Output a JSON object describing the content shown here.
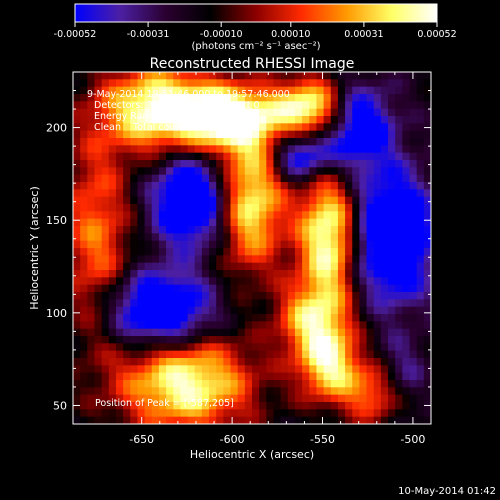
{
  "chart_data": {
    "type": "heatmap",
    "title": "Reconstructed RHESSI Image",
    "xlabel": "Heliocentric X (arcsec)",
    "ylabel": "Heliocentric Y (arcsec)",
    "xlim": [
      -688,
      -490
    ],
    "ylim": [
      40,
      230
    ],
    "x_ticks": [
      "-650",
      "-600",
      "-550",
      "-500"
    ],
    "x_tick_values": [
      -650,
      -600,
      -550,
      -500
    ],
    "y_ticks": [
      "50",
      "100",
      "150",
      "200"
    ],
    "y_tick_values": [
      50,
      100,
      150,
      200
    ],
    "colorbar": {
      "min": -0.00052,
      "max": 0.00052,
      "tick_labels": [
        "-0.00052",
        "-0.00031",
        "-0.00010",
        "0.00010",
        "0.00031",
        "0.00052"
      ],
      "tick_values": [
        -0.00052,
        -0.00031,
        -0.0001,
        0.0001,
        0.00031,
        0.00052
      ],
      "unit_label": "(photons cm⁻² s⁻¹ asec⁻²)",
      "stops": [
        "#0000ff",
        "#4c1fa3",
        "#2a0030",
        "#000000",
        "#8c0000",
        "#ff2a00",
        "#ff9900",
        "#ffff66",
        "#ffffff"
      ]
    },
    "annotations": [
      "9-May-2014 19:51:46.000 to 19:57:46.000",
      "Detectors: 3F 5F 6F 7F 8F 9F, Att 0",
      "Energy Range: 12.0 - 25.0 keV",
      "Clean    Total counts: 1.59E+04",
      "Position of Peak = [-587,205]"
    ],
    "grid": false,
    "sources": [
      {
        "x": -640,
        "y": 210,
        "sx": 22,
        "sy": 16,
        "amp": 1.0
      },
      {
        "x": -600,
        "y": 205,
        "sx": 20,
        "sy": 12,
        "amp": 1.0
      },
      {
        "x": -555,
        "y": 210,
        "sx": 14,
        "sy": 12,
        "amp": 0.95
      },
      {
        "x": -590,
        "y": 160,
        "sx": 14,
        "sy": 26,
        "amp": 0.95
      },
      {
        "x": -545,
        "y": 140,
        "sx": 12,
        "sy": 26,
        "amp": 1.0
      },
      {
        "x": -555,
        "y": 95,
        "sx": 14,
        "sy": 14,
        "amp": 0.65
      },
      {
        "x": -625,
        "y": 60,
        "sx": 26,
        "sy": 18,
        "amp": 0.95
      },
      {
        "x": -545,
        "y": 70,
        "sx": 12,
        "sy": 14,
        "amp": 0.8
      },
      {
        "x": -515,
        "y": 55,
        "sx": 14,
        "sy": 12,
        "amp": 0.7
      },
      {
        "x": -675,
        "y": 140,
        "sx": 14,
        "sy": 40,
        "amp": 0.55
      },
      {
        "x": -640,
        "y": 100,
        "sx": 20,
        "sy": 14,
        "amp": -0.9
      },
      {
        "x": -620,
        "y": 160,
        "sx": 16,
        "sy": 18,
        "amp": -0.9
      },
      {
        "x": -510,
        "y": 140,
        "sx": 16,
        "sy": 24,
        "amp": -0.95
      },
      {
        "x": -560,
        "y": 185,
        "sx": 12,
        "sy": 10,
        "amp": -0.7
      },
      {
        "x": -530,
        "y": 200,
        "sx": 14,
        "sy": 16,
        "amp": -0.75
      },
      {
        "x": -505,
        "y": 60,
        "sx": 10,
        "sy": 14,
        "amp": -0.55
      }
    ]
  },
  "footer": {
    "timestamp": "10-May-2014 01:42"
  }
}
